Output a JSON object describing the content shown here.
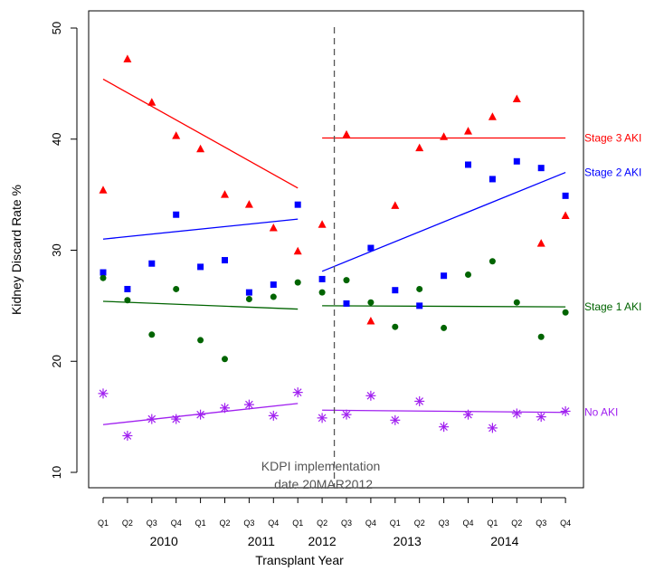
{
  "chart_data": {
    "type": "scatter",
    "xlabel": "Transplant Year",
    "ylabel": "Kidney Discard Rate %",
    "ylim": [
      10,
      50
    ],
    "yticks": [
      10,
      20,
      30,
      40,
      50
    ],
    "quarters": [
      "Q1",
      "Q2",
      "Q3",
      "Q4",
      "Q1",
      "Q2",
      "Q3",
      "Q4",
      "Q1",
      "Q2",
      "Q3",
      "Q4",
      "Q1",
      "Q2",
      "Q3",
      "Q4",
      "Q1",
      "Q2",
      "Q3",
      "Q4"
    ],
    "years": [
      {
        "label": "2010",
        "center": 2.5
      },
      {
        "label": "2011",
        "center": 6.5
      },
      {
        "label": "2012",
        "center": 9.0
      },
      {
        "label": "2013",
        "center": 12.5
      },
      {
        "label": "2014",
        "center": 16.5
      }
    ],
    "series": [
      {
        "name": "Stage 3 AKI",
        "color": "#ff0000",
        "marker": "triangle",
        "values": [
          35.4,
          47.2,
          43.3,
          40.3,
          39.1,
          35.0,
          34.1,
          32.0,
          29.9,
          32.3,
          40.4,
          23.6,
          34.0,
          39.2,
          40.2,
          40.7,
          42.0,
          43.6,
          30.6,
          33.1
        ],
        "trend_pre": [
          45.4,
          35.6
        ],
        "trend_post": [
          40.1,
          40.1
        ]
      },
      {
        "name": "Stage 2 AKI",
        "color": "#0000ff",
        "marker": "square",
        "values": [
          28.0,
          26.5,
          28.8,
          33.2,
          28.5,
          29.1,
          26.2,
          26.9,
          34.1,
          27.4,
          25.2,
          30.2,
          26.4,
          25.0,
          27.7,
          37.7,
          36.4,
          38.0,
          37.4,
          34.9
        ],
        "trend_pre": [
          31.0,
          32.8
        ],
        "trend_post": [
          28.1,
          37.0
        ]
      },
      {
        "name": "Stage 1 AKI",
        "color": "#006400",
        "marker": "circle",
        "values": [
          27.5,
          25.5,
          22.4,
          26.5,
          21.9,
          20.2,
          25.6,
          25.8,
          27.1,
          26.2,
          27.3,
          25.3,
          23.1,
          26.5,
          23.0,
          27.8,
          29.0,
          25.3,
          22.2,
          24.4
        ],
        "trend_pre": [
          25.4,
          24.7
        ],
        "trend_post": [
          25.0,
          24.9
        ]
      },
      {
        "name": "No AKI",
        "color": "#a020f0",
        "marker": "asterisk",
        "values": [
          17.1,
          13.3,
          14.8,
          14.8,
          15.2,
          15.8,
          16.1,
          15.1,
          17.2,
          14.9,
          15.2,
          16.9,
          14.7,
          16.4,
          14.1,
          15.2,
          14.0,
          15.3,
          15.0,
          15.5
        ],
        "trend_pre": [
          14.3,
          16.2
        ],
        "trend_post": [
          15.6,
          15.4
        ]
      }
    ],
    "annotation": {
      "line1": "KDPI implementation",
      "line2": "date 20MAR2012",
      "x": 9.5
    }
  }
}
